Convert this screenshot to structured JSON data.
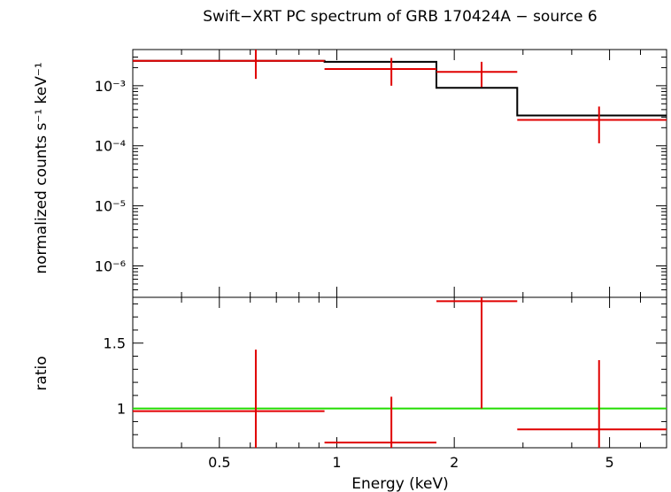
{
  "chart_data": {
    "title": "Swift−XRT PC spectrum of GRB 170424A − source 6",
    "xlabel": "Energy (keV)",
    "x_scale": "log",
    "xlim": [
      0.3,
      7.0
    ],
    "x_ticks": [
      {
        "value": 0.5,
        "label": "0.5"
      },
      {
        "value": 1,
        "label": "1"
      },
      {
        "value": 2,
        "label": "2"
      },
      {
        "value": 5,
        "label": "5"
      }
    ],
    "panels": [
      {
        "name": "spectrum",
        "type": "step+errorbar",
        "ylabel": "normalized counts s⁻¹ keV⁻¹",
        "y_scale": "log",
        "ylim": [
          3e-07,
          0.004
        ],
        "y_ticks": [
          {
            "value": 0.001,
            "label": "10⁻³"
          },
          {
            "value": 0.0001,
            "label": "10⁻⁴"
          },
          {
            "value": 1e-05,
            "label": "10⁻⁵"
          },
          {
            "value": 1e-06,
            "label": "10⁻⁶"
          }
        ],
        "model_steps": [
          {
            "x0": 0.3,
            "x1": 0.93,
            "y": 0.0026
          },
          {
            "x0": 0.93,
            "x1": 1.8,
            "y": 0.0025
          },
          {
            "x0": 1.8,
            "x1": 2.9,
            "y": 0.00092
          },
          {
            "x0": 2.9,
            "x1": 7.0,
            "y": 0.00032
          }
        ],
        "data_points": [
          {
            "x": 0.62,
            "xlo": 0.3,
            "xhi": 0.93,
            "y": 0.0026,
            "ylo": 0.0013,
            "yhi": 0.004
          },
          {
            "x": 1.38,
            "xlo": 0.93,
            "xhi": 1.8,
            "y": 0.0019,
            "ylo": 0.001,
            "yhi": 0.0029
          },
          {
            "x": 2.35,
            "xlo": 1.8,
            "xhi": 2.9,
            "y": 0.0017,
            "ylo": 0.00095,
            "yhi": 0.0025
          },
          {
            "x": 4.7,
            "xlo": 2.9,
            "xhi": 7.0,
            "y": 0.00027,
            "ylo": 0.00011,
            "yhi": 0.00045
          }
        ],
        "colors": {
          "model": "#000000",
          "data": "#e00000"
        }
      },
      {
        "name": "ratio",
        "type": "errorbar",
        "ylabel": "ratio",
        "y_scale": "linear",
        "ylim": [
          0.7,
          1.85
        ],
        "y_ticks": [
          {
            "value": 1,
            "label": "1"
          },
          {
            "value": 1.5,
            "label": "1.5"
          }
        ],
        "reference_line": {
          "y": 1,
          "color": "#22dd00"
        },
        "data_points": [
          {
            "x": 0.62,
            "xlo": 0.3,
            "xhi": 0.93,
            "y": 0.98,
            "ylo": 0.7,
            "yhi": 1.45
          },
          {
            "x": 1.38,
            "xlo": 0.93,
            "xhi": 1.8,
            "y": 0.74,
            "ylo": 0.7,
            "yhi": 1.09
          },
          {
            "x": 2.35,
            "xlo": 1.8,
            "xhi": 2.9,
            "y": 1.82,
            "ylo": 1.0,
            "yhi": 1.85
          },
          {
            "x": 4.7,
            "xlo": 2.9,
            "xhi": 7.0,
            "y": 0.84,
            "ylo": 0.7,
            "yhi": 1.37
          }
        ],
        "colors": {
          "data": "#e00000"
        }
      }
    ]
  }
}
